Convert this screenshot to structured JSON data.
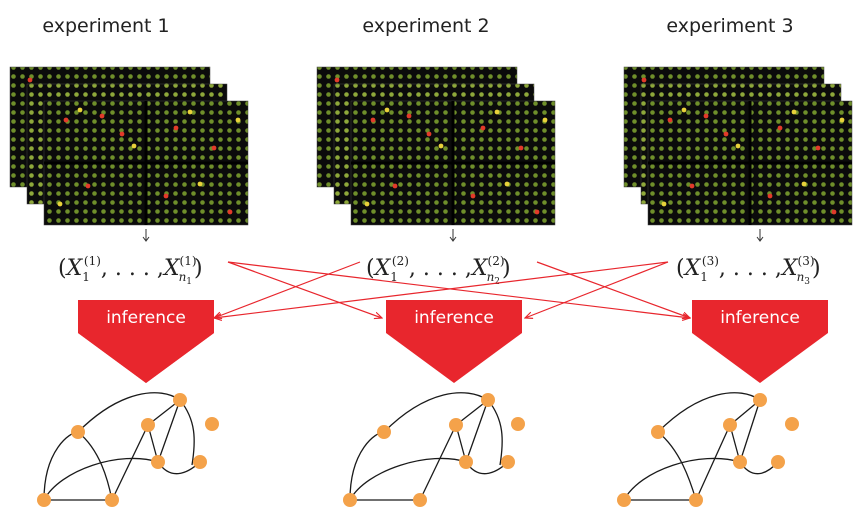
{
  "experiments": [
    {
      "title": "experiment 1",
      "sub": "1",
      "subn": "n",
      "subn_idx": "1"
    },
    {
      "title": "experiment 2",
      "sub": "2",
      "subn": "n",
      "subn_idx": "2"
    },
    {
      "title": "experiment 3",
      "sub": "3",
      "subn": "n",
      "subn_idx": "3"
    }
  ],
  "inference_label": "inference",
  "math": {
    "open": "(",
    "var": "X",
    "sub_first": "1",
    "ellipsis": ", . . . ,",
    "close": ")"
  },
  "colors": {
    "arrow": "#e8262d",
    "node": "#f4a24a",
    "edge": "#1a1a1a",
    "cross_line": "#e8262d",
    "microarray_bg": "#0b0b0b"
  },
  "icons": [
    "microarray-image",
    "down-arrow",
    "inference-arrow",
    "network-graph"
  ]
}
